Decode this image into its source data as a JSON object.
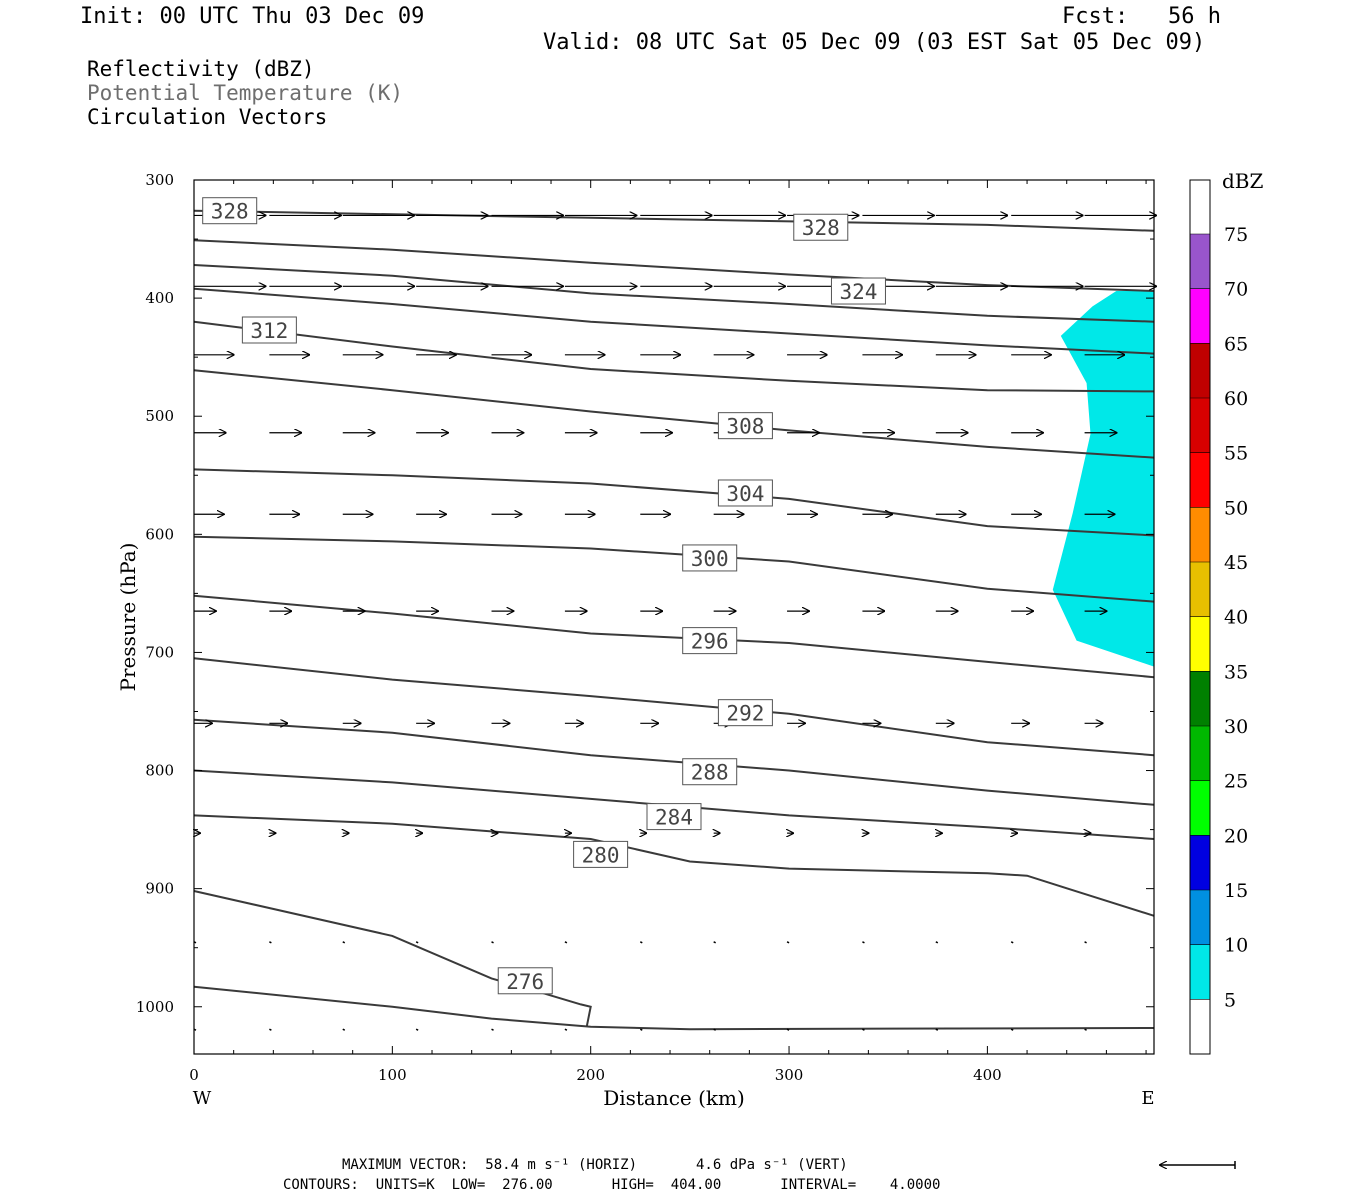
{
  "header": {
    "init": "Init: 00 UTC Thu 03 Dec 09",
    "fcst": "Fcst:   56 h",
    "valid": "Valid: 08 UTC Sat 05 Dec 09 (03 EST Sat 05 Dec 09)",
    "fields": [
      "Reflectivity (dBZ)",
      "Potential Temperature (K)",
      "Circulation Vectors"
    ]
  },
  "footer": {
    "max_vector": "MAXIMUM VECTOR:  58.4 m s⁻¹ (HORIZ)       4.6 dPa s⁻¹ (VERT)",
    "contours": "CONTOURS:  UNITS=K  LOW=  276.00       HIGH=  404.00       INTERVAL=    4.0000"
  },
  "colors": {
    "contour": "#3a3a3a",
    "reflectivity_fill": "#00e8e8",
    "field2_gray": "#6e6e6e"
  },
  "chart_data": {
    "type": "area",
    "xlabel": "Distance (km)",
    "ylabel": "Pressure (hPa)",
    "xlim": [
      0,
      484
    ],
    "ylim": [
      1040,
      300
    ],
    "x_ticks": [
      0,
      100,
      200,
      300,
      400
    ],
    "y_ticks": [
      300,
      400,
      500,
      600,
      700,
      800,
      900,
      1000
    ],
    "x_end_labels": {
      "left": "W",
      "right": "E"
    },
    "colorbar": {
      "title": "dBZ",
      "labels": [
        "75",
        "70",
        "65",
        "60",
        "55",
        "50",
        "45",
        "40",
        "35",
        "30",
        "25",
        "20",
        "15",
        "10",
        "5"
      ],
      "colors": [
        "#9955cc",
        "#ff00ff",
        "#c00000",
        "#d80000",
        "#ff0000",
        "#ff8c00",
        "#e8c000",
        "#ffff00",
        "#008000",
        "#00b800",
        "#00ff00",
        "#0000e0",
        "#0090e0",
        "#00e8e8",
        "#ffffff"
      ]
    },
    "contour_labels": [
      {
        "text": "328",
        "x": 18,
        "p": 326
      },
      {
        "text": "328",
        "x": 316,
        "p": 340
      },
      {
        "text": "324",
        "x": 335,
        "p": 394
      },
      {
        "text": "312",
        "x": 38,
        "p": 427
      },
      {
        "text": "308",
        "x": 278,
        "p": 508
      },
      {
        "text": "304",
        "x": 278,
        "p": 565
      },
      {
        "text": "300",
        "x": 260,
        "p": 620
      },
      {
        "text": "296",
        "x": 260,
        "p": 690
      },
      {
        "text": "292",
        "x": 278,
        "p": 751
      },
      {
        "text": "288",
        "x": 260,
        "p": 801
      },
      {
        "text": "284",
        "x": 242,
        "p": 839
      },
      {
        "text": "280",
        "x": 205,
        "p": 871
      },
      {
        "text": "276",
        "x": 167,
        "p": 978
      }
    ],
    "isentropes": [
      {
        "points": [
          [
            0,
            326
          ],
          [
            200,
            332
          ],
          [
            400,
            338
          ],
          [
            484,
            343
          ]
        ]
      },
      {
        "points": [
          [
            0,
            351
          ],
          [
            100,
            359
          ],
          [
            200,
            370
          ],
          [
            300,
            380
          ],
          [
            400,
            389
          ],
          [
            484,
            394
          ]
        ]
      },
      {
        "points": [
          [
            0,
            372
          ],
          [
            100,
            381
          ],
          [
            200,
            396
          ],
          [
            300,
            405
          ],
          [
            400,
            415
          ],
          [
            484,
            420
          ]
        ]
      },
      {
        "points": [
          [
            0,
            392
          ],
          [
            100,
            405
          ],
          [
            200,
            420
          ],
          [
            300,
            430
          ],
          [
            400,
            440
          ],
          [
            484,
            447
          ]
        ]
      },
      {
        "points": [
          [
            0,
            420
          ],
          [
            100,
            441
          ],
          [
            200,
            460
          ],
          [
            300,
            470
          ],
          [
            400,
            478
          ],
          [
            484,
            479
          ]
        ]
      },
      {
        "points": [
          [
            0,
            461
          ],
          [
            100,
            478
          ],
          [
            200,
            496
          ],
          [
            300,
            512
          ],
          [
            400,
            526
          ],
          [
            484,
            535
          ]
        ]
      },
      {
        "points": [
          [
            0,
            545
          ],
          [
            100,
            550
          ],
          [
            200,
            557
          ],
          [
            300,
            570
          ],
          [
            400,
            593
          ],
          [
            484,
            601
          ]
        ]
      },
      {
        "points": [
          [
            0,
            602
          ],
          [
            100,
            606
          ],
          [
            200,
            612
          ],
          [
            300,
            623
          ],
          [
            400,
            646
          ],
          [
            484,
            657
          ]
        ]
      },
      {
        "points": [
          [
            0,
            652
          ],
          [
            100,
            667
          ],
          [
            200,
            684
          ],
          [
            300,
            692
          ],
          [
            400,
            708
          ],
          [
            484,
            721
          ]
        ]
      },
      {
        "points": [
          [
            0,
            705
          ],
          [
            100,
            723
          ],
          [
            200,
            737
          ],
          [
            300,
            752
          ],
          [
            400,
            776
          ],
          [
            484,
            787
          ]
        ]
      },
      {
        "points": [
          [
            0,
            757
          ],
          [
            100,
            768
          ],
          [
            200,
            787
          ],
          [
            300,
            800
          ],
          [
            400,
            817
          ],
          [
            484,
            829
          ]
        ]
      },
      {
        "points": [
          [
            0,
            800
          ],
          [
            100,
            810
          ],
          [
            200,
            824
          ],
          [
            300,
            838
          ],
          [
            400,
            848
          ],
          [
            484,
            858
          ]
        ]
      },
      {
        "points": [
          [
            0,
            838
          ],
          [
            100,
            845
          ],
          [
            200,
            858
          ],
          [
            250,
            877
          ],
          [
            300,
            883
          ],
          [
            400,
            887
          ],
          [
            420,
            889
          ],
          [
            450,
            905
          ],
          [
            484,
            923
          ]
        ]
      },
      {
        "points": [
          [
            0,
            902
          ],
          [
            100,
            940
          ],
          [
            150,
            976
          ],
          [
            175,
            988
          ],
          [
            195,
            998
          ],
          [
            200,
            1000
          ],
          [
            198,
            1017
          ]
        ]
      },
      {
        "points": [
          [
            0,
            983
          ],
          [
            100,
            1000
          ],
          [
            150,
            1010
          ],
          [
            200,
            1017
          ],
          [
            250,
            1019
          ],
          [
            484,
            1018
          ]
        ]
      }
    ],
    "reflectivity_region_5dBZ": [
      [
        484,
        394
      ],
      [
        465,
        394
      ],
      [
        453,
        407
      ],
      [
        437,
        432
      ],
      [
        450,
        472
      ],
      [
        452,
        515
      ],
      [
        443,
        582
      ],
      [
        433,
        647
      ],
      [
        445,
        690
      ],
      [
        484,
        712
      ]
    ],
    "vectors": [
      {
        "p": 330,
        "x0": 0,
        "len_km": 36,
        "xs": [
          0,
          38,
          75,
          112,
          150,
          187,
          225,
          262,
          299,
          337,
          374,
          412,
          449
        ]
      },
      {
        "p": 390,
        "x0": 0,
        "len_km": 36,
        "xs": [
          0,
          38,
          75,
          112,
          150,
          187,
          225,
          262,
          299,
          337,
          374,
          412,
          449
        ]
      },
      {
        "p": 448,
        "x0": 0,
        "len_km": 20,
        "xs": [
          0,
          38,
          75,
          112,
          150,
          187,
          225,
          262,
          299,
          337,
          374,
          412,
          449
        ]
      },
      {
        "p": 514,
        "x0": 0,
        "len_km": 16,
        "xs": [
          0,
          38,
          75,
          112,
          150,
          187,
          225,
          262,
          299,
          337,
          374,
          412,
          449
        ]
      },
      {
        "p": 583,
        "x0": 0,
        "len_km": 15,
        "xs": [
          0,
          38,
          75,
          112,
          150,
          187,
          225,
          262,
          299,
          337,
          374,
          412,
          449
        ]
      },
      {
        "p": 665,
        "x0": 0,
        "len_km": 11,
        "xs": [
          0,
          38,
          75,
          112,
          150,
          187,
          225,
          262,
          299,
          337,
          374,
          412,
          449
        ]
      },
      {
        "p": 760,
        "x0": 0,
        "len_km": 9,
        "xs": [
          0,
          38,
          75,
          112,
          150,
          187,
          225,
          262,
          299,
          337,
          374,
          412,
          449
        ]
      },
      {
        "p": 853,
        "x0": 0,
        "len_km": 3,
        "xs": [
          0,
          38,
          75,
          112,
          150,
          187,
          225,
          262,
          299,
          337,
          374,
          412,
          449
        ]
      },
      {
        "p": 945,
        "x0": 0,
        "len_km": 0.8,
        "xs": [
          0,
          38,
          75,
          112,
          150,
          187,
          225,
          262,
          299,
          337,
          374,
          412,
          449
        ]
      },
      {
        "p": 1019,
        "x0": 0,
        "len_km": 0.6,
        "xs": [
          0,
          38,
          75,
          112,
          150,
          187,
          225,
          262,
          299,
          337,
          374,
          412,
          449
        ]
      }
    ]
  }
}
